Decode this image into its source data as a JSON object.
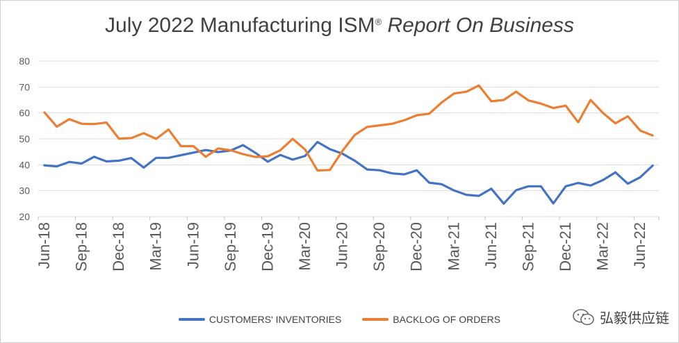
{
  "title": {
    "main": "July 2022 Manufacturing ISM",
    "sup": "®",
    "italic": "Report On Business"
  },
  "watermark": {
    "text": "弘毅供应链",
    "icon": "wechat-icon"
  },
  "colors": {
    "customers": "#4472C4",
    "backlog": "#ED7D31",
    "grid": "#d9d9d9",
    "text": "#595959"
  },
  "chart_data": {
    "type": "line",
    "title": "July 2022 Manufacturing ISM® Report On Business",
    "ylim": [
      20,
      80
    ],
    "yticks": [
      20,
      30,
      40,
      50,
      60,
      70,
      80
    ],
    "grid": true,
    "legend_position": "bottom",
    "x": [
      "Jun-18",
      "Jul-18",
      "Aug-18",
      "Sep-18",
      "Oct-18",
      "Nov-18",
      "Dec-18",
      "Jan-19",
      "Feb-19",
      "Mar-19",
      "Apr-19",
      "May-19",
      "Jun-19",
      "Jul-19",
      "Aug-19",
      "Sep-19",
      "Oct-19",
      "Nov-19",
      "Dec-19",
      "Jan-20",
      "Feb-20",
      "Mar-20",
      "Apr-20",
      "May-20",
      "Jun-20",
      "Jul-20",
      "Aug-20",
      "Sep-20",
      "Oct-20",
      "Nov-20",
      "Dec-20",
      "Jan-21",
      "Feb-21",
      "Mar-21",
      "Apr-21",
      "May-21",
      "Jun-21",
      "Jul-21",
      "Aug-21",
      "Sep-21",
      "Oct-21",
      "Nov-21",
      "Dec-21",
      "Jan-22",
      "Feb-22",
      "Mar-22",
      "Apr-22",
      "May-22",
      "Jun-22",
      "Jul-22"
    ],
    "tick_labels": [
      "Jun-18",
      "Sep-18",
      "Dec-18",
      "Mar-19",
      "Jun-19",
      "Sep-19",
      "Dec-19",
      "Mar-20",
      "Jun-20",
      "Sep-20",
      "Dec-20",
      "Mar-21",
      "Jun-21",
      "Sep-21",
      "Dec-21",
      "Mar-22",
      "Jun-22"
    ],
    "series": [
      {
        "name": "CUSTOMERS' INVENTORIES",
        "values": [
          39.8,
          39.4,
          41.1,
          40.5,
          43.1,
          41.3,
          41.6,
          42.6,
          38.9,
          42.7,
          42.7,
          43.7,
          44.7,
          45.7,
          44.9,
          45.5,
          47.6,
          44.6,
          41.2,
          43.8,
          42.0,
          43.4,
          48.8,
          46.0,
          44.3,
          41.6,
          38.2,
          37.9,
          36.7,
          36.3,
          37.9,
          33.1,
          32.5,
          30.1,
          28.4,
          28.0,
          30.8,
          25.0,
          30.2,
          31.7,
          31.7,
          25.1,
          31.7,
          33.0,
          32.0,
          34.1,
          37.1,
          32.7,
          35.2,
          39.7
        ]
      },
      {
        "name": "BACKLOG OF ORDERS",
        "values": [
          60.2,
          54.7,
          57.6,
          55.8,
          55.7,
          56.3,
          50.1,
          50.3,
          52.2,
          50.0,
          53.6,
          47.2,
          47.2,
          43.1,
          46.3,
          45.6,
          44.1,
          43.0,
          43.3,
          45.6,
          50.0,
          45.9,
          37.8,
          38.0,
          45.3,
          51.5,
          54.6,
          55.2,
          55.8,
          57.2,
          59.1,
          59.7,
          64.0,
          67.5,
          68.2,
          70.6,
          64.5,
          65.0,
          68.2,
          64.8,
          63.6,
          61.9,
          62.8,
          56.4,
          65.0,
          60.0,
          56.0,
          58.7,
          53.2,
          51.3
        ]
      }
    ]
  }
}
